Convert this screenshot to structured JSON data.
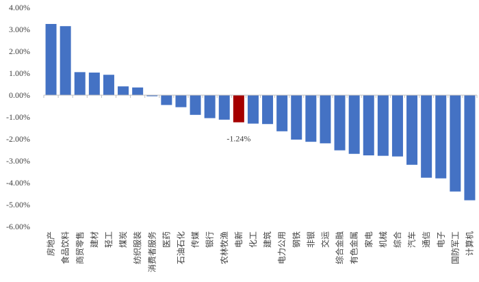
{
  "chart_data": {
    "type": "bar",
    "title": "",
    "xlabel": "",
    "ylabel": "",
    "ylim": [
      -6.0,
      4.0
    ],
    "ytick_step": 1.0,
    "ytick_format": "percent_2dp",
    "grid": false,
    "legend": "none",
    "colors": {
      "bar": "#4472C4",
      "highlight": "#A50000",
      "axis": "#BFBFBF",
      "text": "#404040"
    },
    "highlight_category": "电新",
    "annotation": {
      "category": "电新",
      "text": "-1.24%"
    },
    "categories": [
      "房地产",
      "食品饮料",
      "商贸零售",
      "建材",
      "轻工",
      "煤炭",
      "纺织服装",
      "消费者服务",
      "医药",
      "石油石化",
      "传媒",
      "银行",
      "农林牧渔",
      "电新",
      "化工",
      "建筑",
      "电力公用",
      "钢铁",
      "非银",
      "交运",
      "综合金融",
      "有色金属",
      "家电",
      "机械",
      "综合",
      "汽车",
      "通信",
      "电子",
      "国防军工",
      "计算机"
    ],
    "values": [
      3.25,
      3.15,
      1.05,
      1.03,
      0.93,
      0.4,
      0.35,
      -0.05,
      -0.45,
      -0.55,
      -0.9,
      -1.05,
      -1.12,
      -1.24,
      -1.3,
      -1.32,
      -1.65,
      -2.03,
      -2.13,
      -2.2,
      -2.52,
      -2.68,
      -2.75,
      -2.77,
      -2.8,
      -3.18,
      -3.77,
      -3.8,
      -4.4,
      -4.8
    ]
  }
}
